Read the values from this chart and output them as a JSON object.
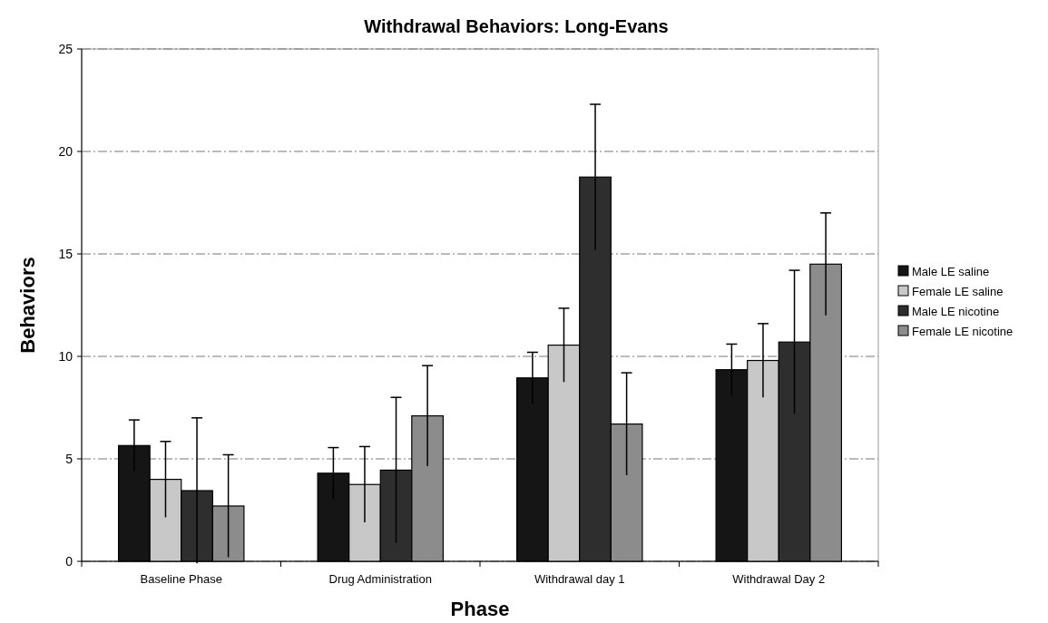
{
  "chart_data": {
    "type": "bar",
    "title": "Withdrawal Behaviors: Long-Evans",
    "xlabel": "Phase",
    "ylabel": "Behaviors",
    "categories": [
      "Baseline Phase",
      "Drug Administration",
      "Withdrawal day 1",
      "Withdrawal Day 2"
    ],
    "series": [
      {
        "name": "Male LE saline",
        "color": "#151515",
        "values": [
          5.65,
          4.3,
          8.95,
          9.35
        ],
        "errors": [
          1.25,
          1.25,
          1.25,
          1.25
        ]
      },
      {
        "name": "Female LE saline",
        "color": "#c8c8c8",
        "values": [
          4.0,
          3.75,
          10.55,
          9.8
        ],
        "errors": [
          1.85,
          1.85,
          1.8,
          1.8
        ]
      },
      {
        "name": "Male LE nicotine",
        "color": "#2e2e2e",
        "values": [
          3.45,
          4.45,
          18.75,
          10.7
        ],
        "errors": [
          3.55,
          3.55,
          3.55,
          3.5
        ]
      },
      {
        "name": "Female LE nicotine",
        "color": "#8c8c8c",
        "values": [
          2.7,
          7.1,
          6.7,
          14.5
        ],
        "errors": [
          2.5,
          2.45,
          2.5,
          2.5
        ]
      }
    ],
    "ylim": [
      0,
      25
    ],
    "yticks": [
      0,
      5,
      10,
      15,
      20,
      25
    ],
    "grid": "y",
    "legend": "right"
  }
}
